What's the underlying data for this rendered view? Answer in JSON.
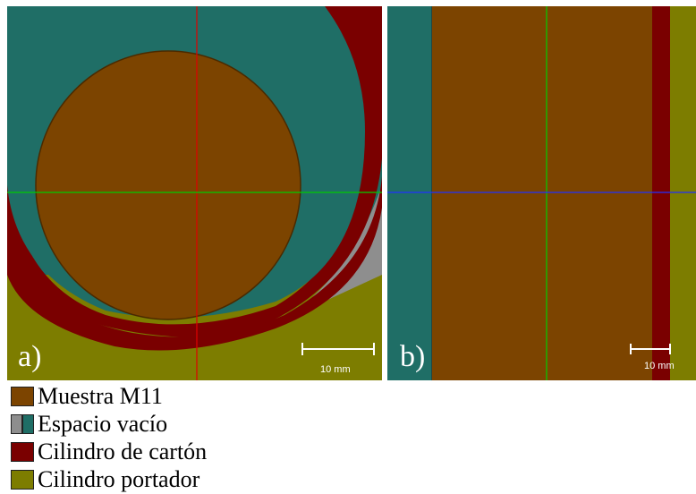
{
  "colors": {
    "muestra": "#7c4400",
    "espacio_teal": "#1f6e66",
    "espacio_gray": "#8e8e8e",
    "carton": "#7a0000",
    "portador": "#7d7d00",
    "crosshair_red": "#e00000",
    "crosshair_green": "#00cc00",
    "crosshair_blue": "#2030ff"
  },
  "panel_a": {
    "label": "a)",
    "scale": "10 mm"
  },
  "panel_b": {
    "label": "b)",
    "scale": "10 mm"
  },
  "legend": [
    {
      "label": "Muestra M11"
    },
    {
      "label": "Espacio vacío"
    },
    {
      "label": "Cilindro de cartón"
    },
    {
      "label": "Cilindro portador"
    }
  ]
}
